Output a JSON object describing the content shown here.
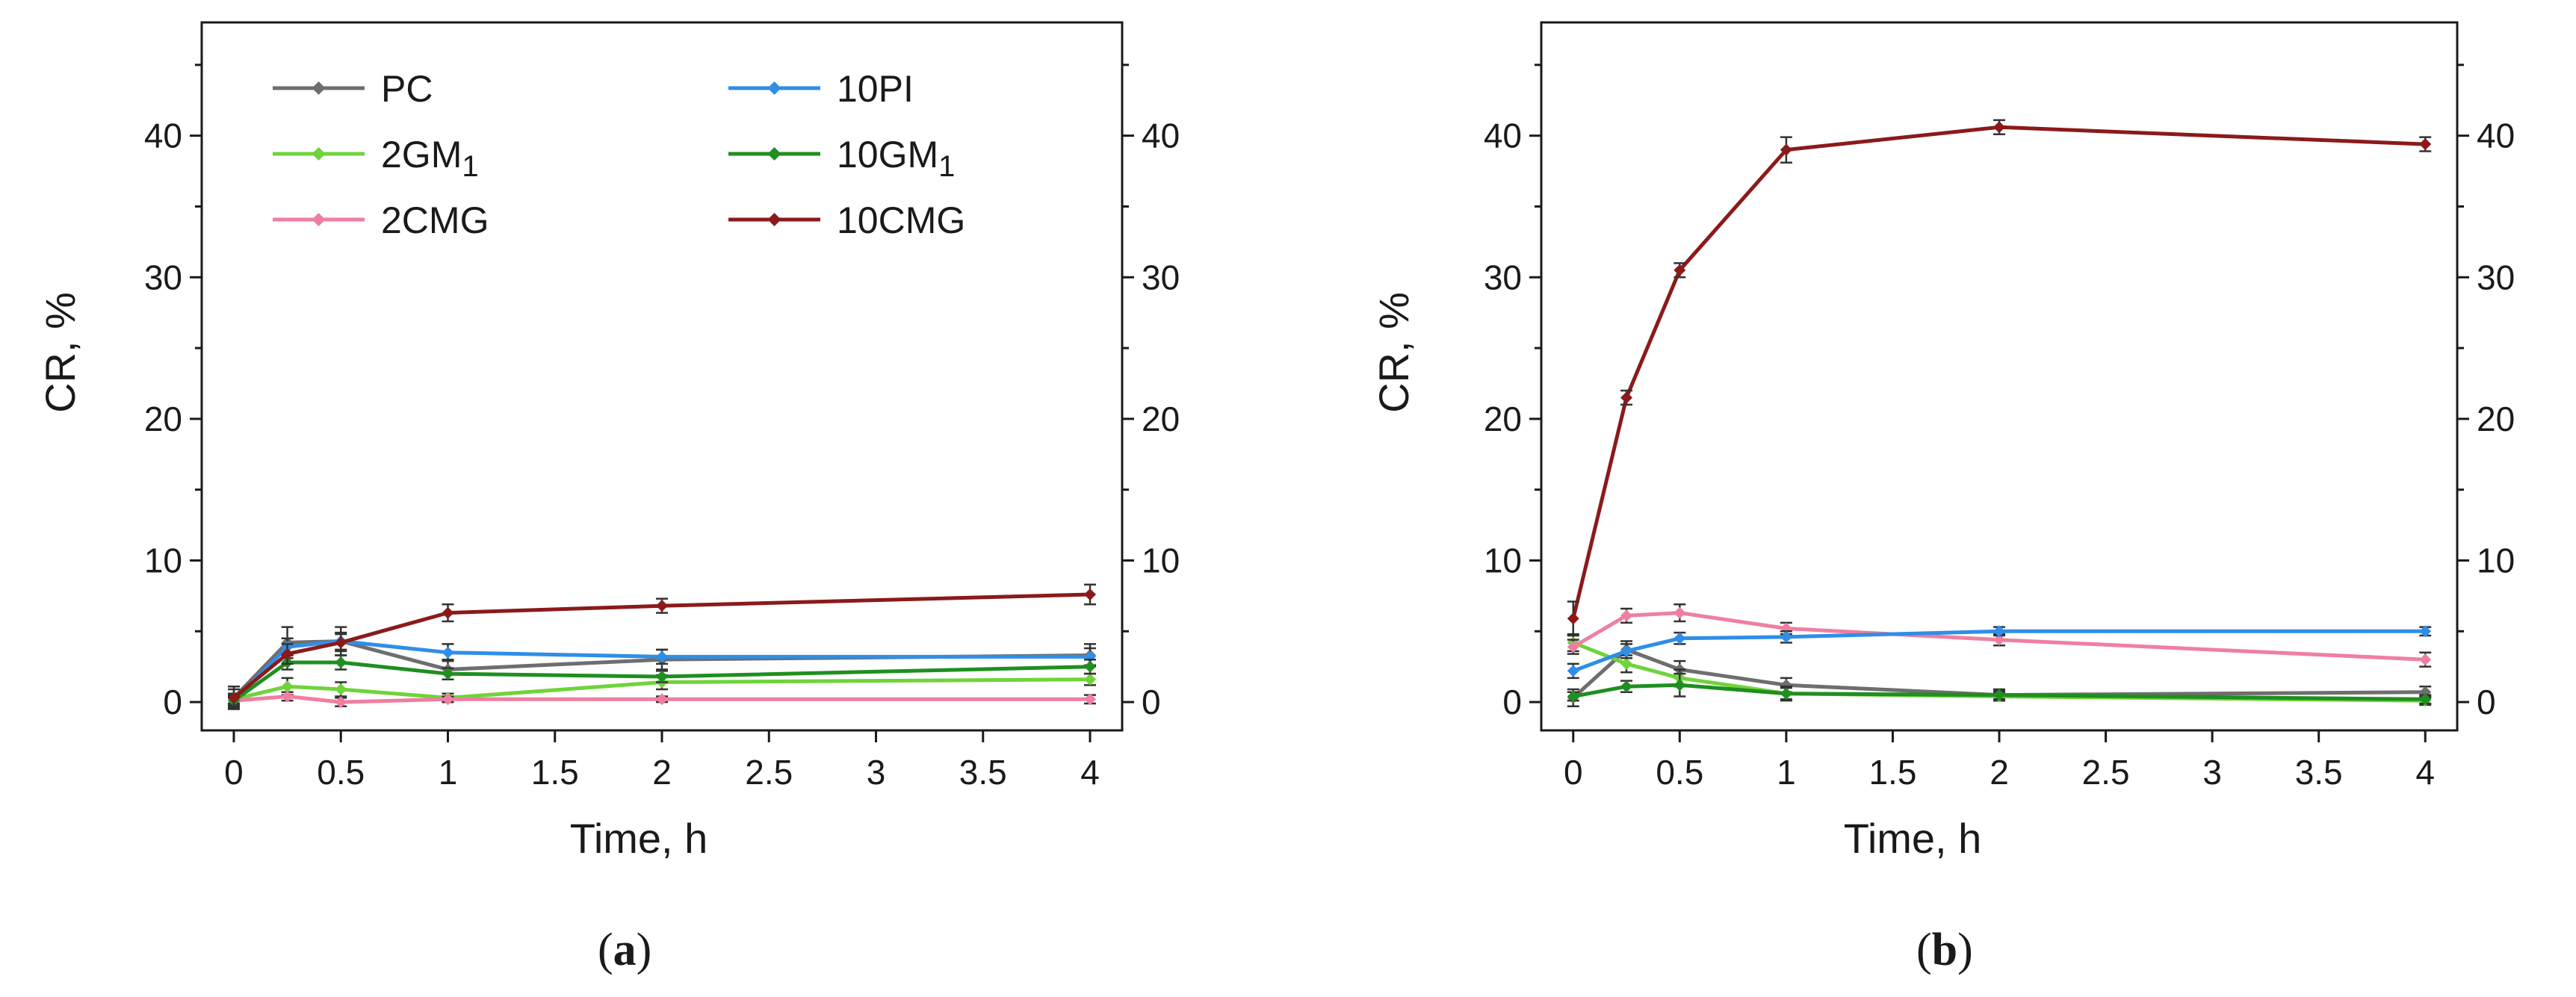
{
  "chart_data": [
    {
      "type": "line",
      "panel": "a",
      "caption_open": "(",
      "caption_letter": "a",
      "caption_close": ")",
      "xlabel": "Time, h",
      "ylabel": "CR, %",
      "xlim": [
        -0.15,
        4.15
      ],
      "ylim": [
        -2,
        48
      ],
      "xticks": [
        0,
        0.5,
        1,
        1.5,
        2,
        2.5,
        3,
        3.5,
        4
      ],
      "xtick_labels": [
        "0",
        "0.5",
        "1",
        "1.5",
        "2",
        "2.5",
        "3",
        "3.5",
        "4"
      ],
      "yticks": [
        0,
        10,
        20,
        30,
        40
      ],
      "ytick_labels": [
        "0",
        "10",
        "20",
        "30",
        "40"
      ],
      "legend": "top-left, two columns",
      "x": [
        0,
        0.25,
        0.5,
        1,
        2,
        4
      ],
      "series": [
        {
          "name": "PC",
          "label_main": "PC",
          "label_sub": "",
          "color": "#6e6e6e",
          "values": [
            0.3,
            4.2,
            4.3,
            2.3,
            3.0,
            3.3
          ],
          "errors": [
            0.8,
            1.1,
            1.0,
            0.7,
            0.7,
            0.8
          ]
        },
        {
          "name": "2GM1",
          "label_main": "2GM",
          "label_sub": "1",
          "color": "#6fd43a",
          "values": [
            0.2,
            1.1,
            0.9,
            0.3,
            1.4,
            1.6
          ],
          "errors": [
            0.3,
            0.6,
            0.5,
            0.3,
            0.5,
            0.4
          ]
        },
        {
          "name": "2CMG",
          "label_main": "2CMG",
          "label_sub": "",
          "color": "#ef7fa0",
          "values": [
            0.1,
            0.4,
            0.0,
            0.2,
            0.2,
            0.2
          ],
          "errors": [
            0.2,
            0.3,
            0.3,
            0.2,
            0.2,
            0.3
          ]
        },
        {
          "name": "10PI",
          "label_main": "10PI",
          "label_sub": "",
          "color": "#2f8ee8",
          "values": [
            0.1,
            3.9,
            4.3,
            3.5,
            3.2,
            3.2
          ],
          "errors": [
            0.5,
            0.6,
            0.6,
            0.6,
            0.5,
            0.6
          ]
        },
        {
          "name": "10GM1",
          "label_main": "10GM",
          "label_sub": "1",
          "color": "#1f8f1f",
          "values": [
            0.1,
            2.8,
            2.8,
            2.0,
            1.8,
            2.5
          ],
          "errors": [
            0.3,
            0.5,
            0.5,
            0.4,
            0.4,
            0.5
          ]
        },
        {
          "name": "10CMG",
          "label_main": "10CMG",
          "label_sub": "",
          "color": "#8b1a1a",
          "values": [
            0.3,
            3.4,
            4.2,
            6.3,
            6.8,
            7.6
          ],
          "errors": [
            0.6,
            0.7,
            0.6,
            0.6,
            0.5,
            0.7
          ]
        }
      ]
    },
    {
      "type": "line",
      "panel": "b",
      "caption_open": "(",
      "caption_letter": "b",
      "caption_close": ")",
      "xlabel": "Time, h",
      "ylabel": "CR, %",
      "xlim": [
        -0.15,
        4.15
      ],
      "ylim": [
        -2,
        48
      ],
      "xticks": [
        0,
        0.5,
        1,
        1.5,
        2,
        2.5,
        3,
        3.5,
        4
      ],
      "xtick_labels": [
        "0",
        "0.5",
        "1",
        "1.5",
        "2",
        "2.5",
        "3",
        "3.5",
        "4"
      ],
      "yticks": [
        0,
        10,
        20,
        30,
        40
      ],
      "ytick_labels": [
        "0",
        "10",
        "20",
        "30",
        "40"
      ],
      "legend": "none",
      "x": [
        0,
        0.25,
        0.5,
        1,
        2,
        4
      ],
      "series": [
        {
          "name": "PC",
          "color": "#6e6e6e",
          "values": [
            0.3,
            3.7,
            2.3,
            1.2,
            0.5,
            0.7
          ],
          "errors": [
            0.6,
            0.6,
            0.6,
            0.5,
            0.4,
            0.4
          ]
        },
        {
          "name": "2GM1",
          "color": "#6fd43a",
          "values": [
            4.2,
            2.7,
            1.7,
            0.6,
            0.4,
            0.1
          ],
          "errors": [
            0.6,
            0.6,
            0.6,
            0.4,
            0.3,
            0.3
          ]
        },
        {
          "name": "2CMG",
          "color": "#ef7fa0",
          "values": [
            3.9,
            6.1,
            6.3,
            5.2,
            4.4,
            3.0
          ],
          "errors": [
            0.5,
            0.5,
            0.6,
            0.4,
            0.4,
            0.5
          ]
        },
        {
          "name": "10PI",
          "color": "#2f8ee8",
          "values": [
            2.2,
            3.6,
            4.5,
            4.6,
            5.0,
            5.0
          ],
          "errors": [
            0.5,
            0.5,
            0.4,
            0.4,
            0.3,
            0.3
          ]
        },
        {
          "name": "10GM1",
          "color": "#1f8f1f",
          "values": [
            0.4,
            1.1,
            1.2,
            0.6,
            0.5,
            0.2
          ],
          "errors": [
            0.3,
            0.4,
            0.8,
            0.5,
            0.3,
            0.3
          ]
        },
        {
          "name": "10CMG",
          "color": "#8b1a1a",
          "values": [
            5.9,
            21.5,
            30.5,
            39.0,
            40.6,
            39.4
          ],
          "errors": [
            1.2,
            0.5,
            0.5,
            0.9,
            0.5,
            0.5
          ]
        }
      ]
    }
  ]
}
